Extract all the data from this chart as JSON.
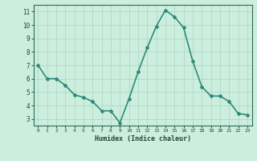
{
  "x": [
    0,
    1,
    2,
    3,
    4,
    5,
    6,
    7,
    8,
    9,
    10,
    11,
    12,
    13,
    14,
    15,
    16,
    17,
    18,
    19,
    20,
    21,
    22,
    23
  ],
  "y": [
    7.0,
    6.0,
    6.0,
    5.5,
    4.8,
    4.6,
    4.3,
    3.6,
    3.6,
    2.7,
    4.5,
    6.5,
    8.3,
    9.9,
    11.1,
    10.6,
    9.8,
    7.3,
    5.4,
    4.7,
    4.7,
    4.3,
    3.4,
    3.3
  ],
  "line_color": "#2e8b7a",
  "marker": "D",
  "marker_size": 2,
  "bg_color": "#cceedd",
  "grid_color": "#b0d8cc",
  "xlabel": "Humidex (Indice chaleur)",
  "xlim": [
    -0.5,
    23.5
  ],
  "ylim": [
    2.5,
    11.5
  ],
  "yticks": [
    3,
    4,
    5,
    6,
    7,
    8,
    9,
    10,
    11
  ],
  "xticks": [
    0,
    1,
    2,
    3,
    4,
    5,
    6,
    7,
    8,
    9,
    10,
    11,
    12,
    13,
    14,
    15,
    16,
    17,
    18,
    19,
    20,
    21,
    22,
    23
  ],
  "tick_color": "#2e6b5a",
  "label_color": "#1a4a3a",
  "line_width": 1.2
}
